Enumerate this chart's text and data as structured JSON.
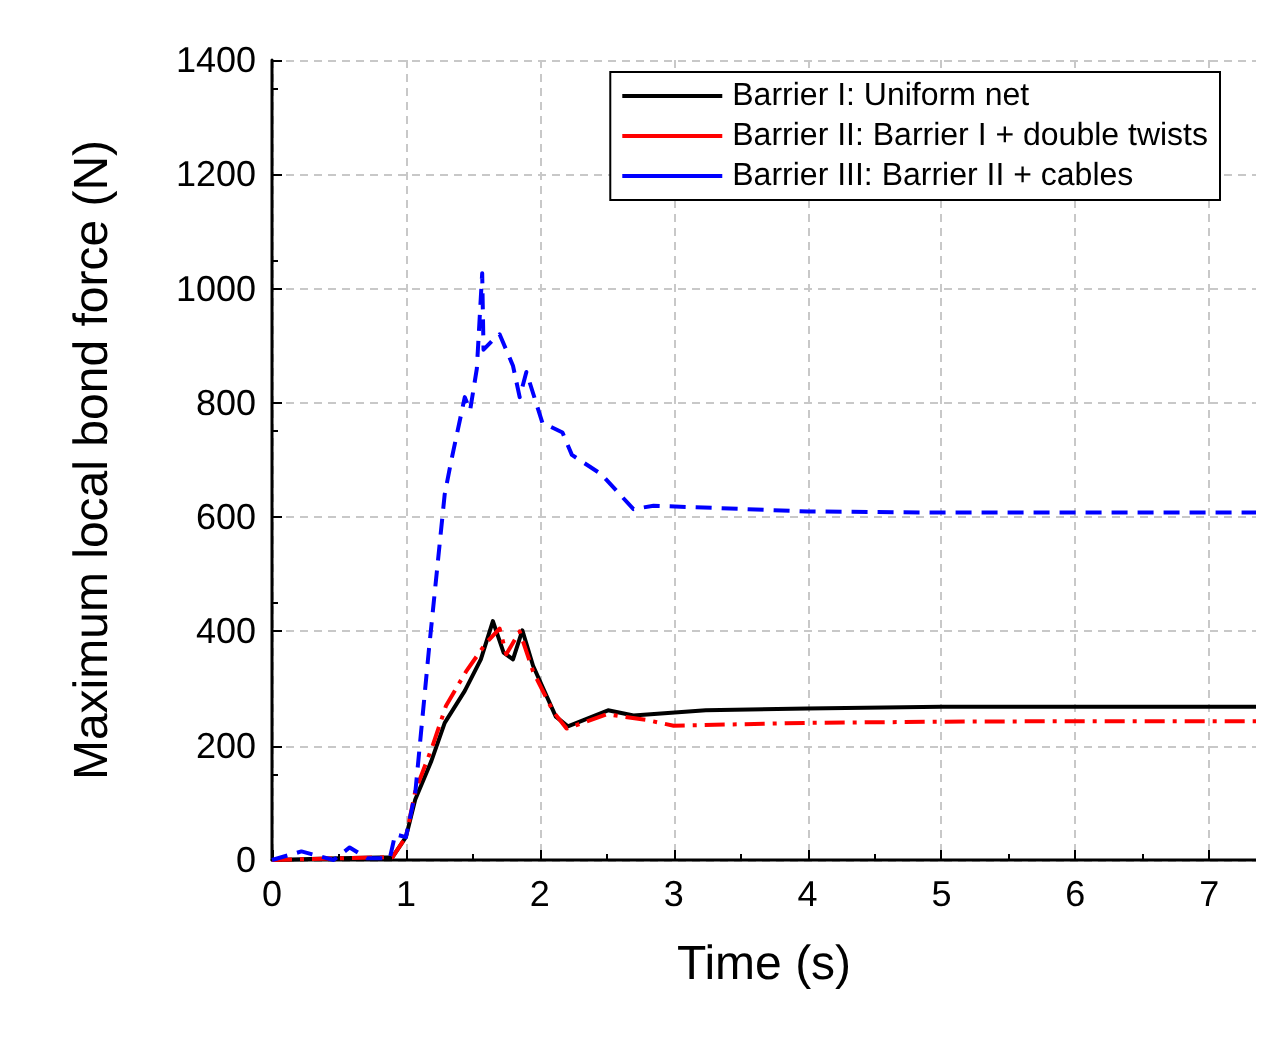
{
  "chart_data": {
    "type": "line",
    "xlabel": "Time (s)",
    "ylabel": "Maximum local bond force (N)",
    "xlim": [
      0,
      7.35
    ],
    "ylim": [
      0,
      1400
    ],
    "xticks": [
      0,
      1,
      2,
      3,
      4,
      5,
      6,
      7
    ],
    "yticks": [
      0,
      200,
      400,
      600,
      800,
      1000,
      1200,
      1400
    ],
    "grid": true,
    "legend": "top right",
    "marker": "none",
    "series": [
      {
        "name": "Barrier I: Uniform net",
        "color": "#000000",
        "line_style": "solid",
        "x": [
          0,
          0.5,
          0.9,
          1.0,
          1.07,
          1.19,
          1.29,
          1.44,
          1.56,
          1.65,
          1.73,
          1.8,
          1.87,
          1.95,
          2.12,
          2.21,
          2.51,
          2.7,
          3.24,
          4,
          5,
          6,
          7.35
        ],
        "values": [
          0,
          3,
          5,
          40,
          106,
          173,
          240,
          296,
          351,
          418,
          363,
          351,
          402,
          340,
          251,
          234,
          262,
          253,
          262,
          265,
          268,
          268,
          268
        ]
      },
      {
        "name": "Barrier II: Barrier I + double twists",
        "color": "#ff0000",
        "line_style": "dashdot",
        "x": [
          0,
          0.5,
          0.9,
          1.0,
          1.07,
          1.2,
          1.3,
          1.45,
          1.6,
          1.7,
          1.75,
          1.85,
          1.95,
          2.1,
          2.2,
          2.5,
          2.8,
          3,
          4,
          5,
          6,
          7.35
        ],
        "values": [
          0,
          3,
          5,
          40,
          120,
          200,
          270,
          330,
          380,
          405,
          360,
          400,
          330,
          260,
          230,
          255,
          245,
          235,
          240,
          242,
          243,
          243
        ]
      },
      {
        "name": "Barrier III: Barrier II + cables",
        "color": "#0000ff",
        "line_style": "dashed",
        "x": [
          0,
          0.22,
          0.46,
          0.58,
          0.71,
          0.88,
          0.92,
          1.0,
          1.07,
          1.17,
          1.29,
          1.34,
          1.44,
          1.48,
          1.53,
          1.57,
          1.58,
          1.65,
          1.7,
          1.8,
          1.85,
          1.9,
          2.02,
          2.17,
          2.24,
          2.46,
          2.7,
          2.85,
          4,
          5,
          6,
          7.35
        ],
        "values": [
          0,
          15,
          0,
          22,
          3,
          3,
          45,
          40,
          117,
          363,
          640,
          700,
          810,
          787,
          860,
          1027,
          893,
          910,
          920,
          865,
          810,
          854,
          765,
          748,
          709,
          675,
          614,
          620,
          610,
          608,
          608,
          608
        ]
      }
    ]
  }
}
